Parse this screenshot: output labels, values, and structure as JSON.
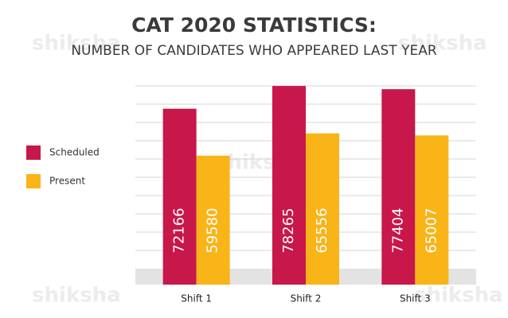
{
  "chart_data": {
    "type": "bar",
    "title": "CAT 2020 STATISTICS:",
    "subtitle": "NUMBER OF CANDIDATES WHO APPEARED LAST YEAR",
    "watermark": "shiksha",
    "categories": [
      "Shift 1",
      "Shift 2",
      "Shift 3"
    ],
    "series": [
      {
        "name": "Scheduled",
        "color": "#c8174a",
        "values": [
          72166,
          78265,
          77404
        ]
      },
      {
        "name": "Present",
        "color": "#f9b418",
        "values": [
          59580,
          65556,
          65007
        ]
      }
    ],
    "ylim": [
      25000,
      80000
    ],
    "legend": "left"
  }
}
